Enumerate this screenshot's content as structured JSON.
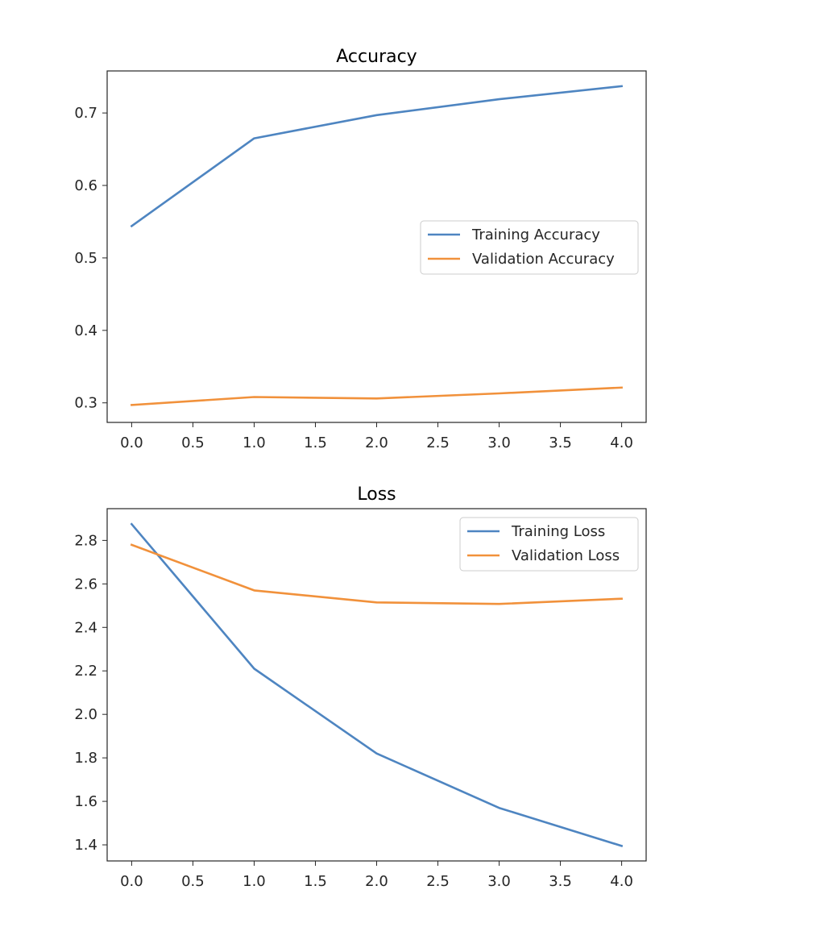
{
  "chart_data": [
    {
      "type": "line",
      "title": "Accuracy",
      "xlabel": "",
      "ylabel": "",
      "x": [
        0,
        1,
        2,
        3,
        4
      ],
      "xlim": [
        -0.2,
        4.2
      ],
      "ylim": [
        0.273,
        0.758
      ],
      "xticks": [
        "0.0",
        "0.5",
        "1.0",
        "1.5",
        "2.0",
        "2.5",
        "3.0",
        "3.5",
        "4.0"
      ],
      "yticks": [
        "0.3",
        "0.4",
        "0.5",
        "0.6",
        "0.7"
      ],
      "legend_position": "center-right",
      "series": [
        {
          "name": "Training Accuracy",
          "color": "#4e85c1",
          "values": [
            0.544,
            0.665,
            0.697,
            0.719,
            0.737
          ]
        },
        {
          "name": "Validation Accuracy",
          "color": "#f1913b",
          "values": [
            0.297,
            0.308,
            0.306,
            0.313,
            0.321
          ]
        }
      ]
    },
    {
      "type": "line",
      "title": "Loss",
      "xlabel": "",
      "ylabel": "",
      "x": [
        0,
        1,
        2,
        3,
        4
      ],
      "xlim": [
        -0.2,
        4.2
      ],
      "ylim": [
        1.326,
        2.946
      ],
      "xticks": [
        "0.0",
        "0.5",
        "1.0",
        "1.5",
        "2.0",
        "2.5",
        "3.0",
        "3.5",
        "4.0"
      ],
      "yticks": [
        "1.4",
        "1.6",
        "1.8",
        "2.0",
        "2.2",
        "2.4",
        "2.6",
        "2.8"
      ],
      "legend_position": "upper-right",
      "series": [
        {
          "name": "Training Loss",
          "color": "#4e85c1",
          "values": [
            2.875,
            2.21,
            1.82,
            1.57,
            1.395
          ]
        },
        {
          "name": "Validation Loss",
          "color": "#f1913b",
          "values": [
            2.78,
            2.57,
            2.515,
            2.508,
            2.532
          ]
        }
      ]
    }
  ]
}
